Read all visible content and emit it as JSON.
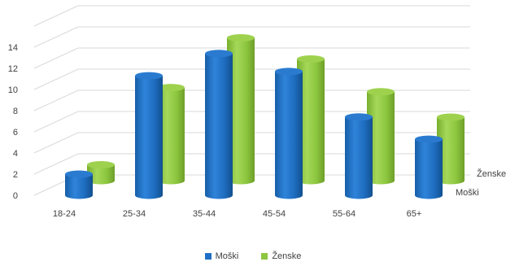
{
  "chart_data": {
    "type": "bar",
    "style": "3d-cylinder",
    "categories": [
      "18-24",
      "25-34",
      "35-44",
      "45-54",
      "55-64",
      "65+"
    ],
    "series": [
      {
        "name": "Moški",
        "values": [
          2.0,
          11.3,
          13.4,
          11.7,
          7.4,
          5.3
        ],
        "color": "#1F6FC5"
      },
      {
        "name": "Ženske",
        "values": [
          1.5,
          8.8,
          13.5,
          11.5,
          8.4,
          6.0
        ],
        "color": "#8DC63F"
      }
    ],
    "y_ticks": [
      "0",
      "2",
      "4",
      "6",
      "8",
      "10",
      "12",
      "14"
    ],
    "ylim": [
      0,
      16
    ],
    "depth_labels": [
      "Moški",
      "Ženske"
    ],
    "legend": [
      "Moški",
      "Ženske"
    ],
    "legend_position": "bottom",
    "grid": true
  }
}
